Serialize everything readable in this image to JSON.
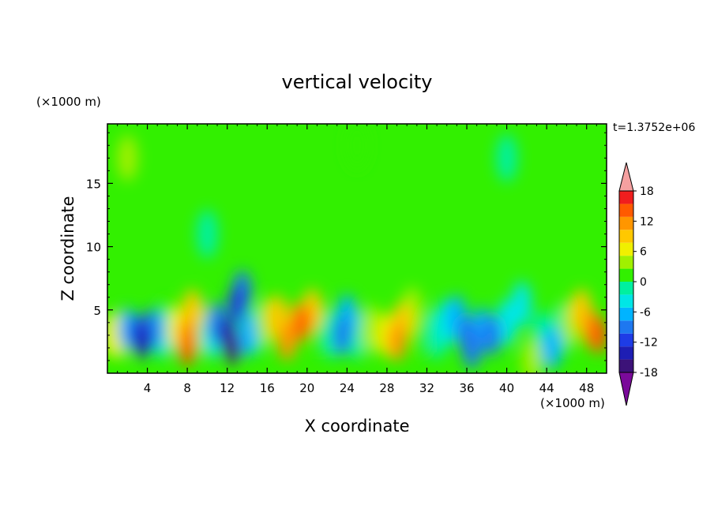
{
  "chart_data": {
    "type": "heatmap",
    "title": "vertical velocity",
    "xlabel": "X coordinate",
    "ylabel": "Z coordinate",
    "x_unit": "(×1000 m)",
    "y_unit": "(×1000 m)",
    "time_label": "t=1.3752e+06",
    "xlim": [
      0,
      50
    ],
    "ylim": [
      0,
      19.7
    ],
    "x_ticks": [
      4,
      8,
      12,
      16,
      20,
      24,
      28,
      32,
      36,
      40,
      44,
      48
    ],
    "y_ticks": [
      5,
      10,
      15
    ],
    "colorbar": {
      "labels": [
        18,
        12,
        6,
        0,
        -6,
        -12,
        -18
      ],
      "levels": [
        -21,
        -18,
        -15,
        -12,
        -9,
        -6,
        -3,
        0,
        3,
        6,
        9,
        12,
        15,
        18,
        21
      ],
      "colors": [
        "#7a0a9a",
        "#3c1278",
        "#1e1eb4",
        "#1e3ce6",
        "#1e78f0",
        "#00b4ff",
        "#00e6e6",
        "#00f0a0",
        "#32f000",
        "#a0f000",
        "#f0f000",
        "#ffc800",
        "#ff9600",
        "#ff5a00",
        "#f01e1e",
        "#f5a0a0"
      ],
      "extend": "both"
    },
    "cells": [
      {
        "x": 0.5,
        "z": 3.0,
        "w": 6
      },
      {
        "x": 1.5,
        "z": 3.0,
        "w": 3
      },
      {
        "x": 2.0,
        "z": 3.5,
        "w": -9
      },
      {
        "x": 3.0,
        "z": 3.2,
        "w": -15
      },
      {
        "x": 3.5,
        "z": 2.5,
        "w": -17
      },
      {
        "x": 4.5,
        "z": 3.5,
        "w": -10
      },
      {
        "x": 5.5,
        "z": 3.0,
        "w": -5
      },
      {
        "x": 6.0,
        "z": 4.0,
        "w": 2
      },
      {
        "x": 7.0,
        "z": 3.5,
        "w": 8
      },
      {
        "x": 8.0,
        "z": 3.0,
        "w": 13
      },
      {
        "x": 8.0,
        "z": 2.0,
        "w": 16
      },
      {
        "x": 8.5,
        "z": 5.0,
        "w": 10
      },
      {
        "x": 9.5,
        "z": 3.5,
        "w": 4
      },
      {
        "x": 10.5,
        "z": 3.0,
        "w": -4
      },
      {
        "x": 11.0,
        "z": 4.0,
        "w": -10
      },
      {
        "x": 12.0,
        "z": 3.0,
        "w": -16
      },
      {
        "x": 12.5,
        "z": 2.0,
        "w": -19
      },
      {
        "x": 13.0,
        "z": 5.5,
        "w": -14
      },
      {
        "x": 13.5,
        "z": 6.5,
        "w": -10
      },
      {
        "x": 14.0,
        "z": 3.0,
        "w": -8
      },
      {
        "x": 15.0,
        "z": 3.5,
        "w": -3
      },
      {
        "x": 16.0,
        "z": 4.0,
        "w": 3
      },
      {
        "x": 17.0,
        "z": 4.5,
        "w": 9
      },
      {
        "x": 18.0,
        "z": 2.5,
        "w": 13
      },
      {
        "x": 19.0,
        "z": 4.0,
        "w": 11
      },
      {
        "x": 19.5,
        "z": 4.0,
        "w": 15
      },
      {
        "x": 20.5,
        "z": 5.0,
        "w": 9
      },
      {
        "x": 21.5,
        "z": 3.5,
        "w": 2
      },
      {
        "x": 22.5,
        "z": 3.0,
        "w": -3
      },
      {
        "x": 23.5,
        "z": 3.0,
        "w": -11
      },
      {
        "x": 24.0,
        "z": 4.5,
        "w": -7
      },
      {
        "x": 25.0,
        "z": 3.0,
        "w": -2
      },
      {
        "x": 26.5,
        "z": 3.5,
        "w": 3
      },
      {
        "x": 28.0,
        "z": 3.0,
        "w": 8
      },
      {
        "x": 29.0,
        "z": 2.5,
        "w": 12
      },
      {
        "x": 29.5,
        "z": 4.0,
        "w": 10
      },
      {
        "x": 30.5,
        "z": 5.0,
        "w": 5
      },
      {
        "x": 31.5,
        "z": 3.5,
        "w": 1
      },
      {
        "x": 33.0,
        "z": 3.0,
        "w": -2
      },
      {
        "x": 34.0,
        "z": 4.0,
        "w": -4
      },
      {
        "x": 35.0,
        "z": 4.5,
        "w": -9
      },
      {
        "x": 36.0,
        "z": 3.0,
        "w": -12
      },
      {
        "x": 36.5,
        "z": 2.0,
        "w": -10
      },
      {
        "x": 37.5,
        "z": 3.5,
        "w": -7
      },
      {
        "x": 38.5,
        "z": 3.0,
        "w": -11
      },
      {
        "x": 40.0,
        "z": 4.0,
        "w": -4
      },
      {
        "x": 41.5,
        "z": 5.5,
        "w": -6
      },
      {
        "x": 42.5,
        "z": 1.0,
        "w": 5
      },
      {
        "x": 43.5,
        "z": 3.0,
        "w": -3
      },
      {
        "x": 44.5,
        "z": 2.0,
        "w": -8
      },
      {
        "x": 45.5,
        "z": 3.5,
        "w": -1
      },
      {
        "x": 46.5,
        "z": 4.0,
        "w": 4
      },
      {
        "x": 47.5,
        "z": 5.0,
        "w": 9
      },
      {
        "x": 48.5,
        "z": 3.5,
        "w": 12
      },
      {
        "x": 49.2,
        "z": 3.0,
        "w": 15
      },
      {
        "x": 25.0,
        "z": 18.0,
        "w": 2
      },
      {
        "x": 40.0,
        "z": 17.0,
        "w": -3
      },
      {
        "x": 10.0,
        "z": 11.0,
        "w": -2
      },
      {
        "x": 2.0,
        "z": 17.0,
        "w": 5
      }
    ]
  }
}
